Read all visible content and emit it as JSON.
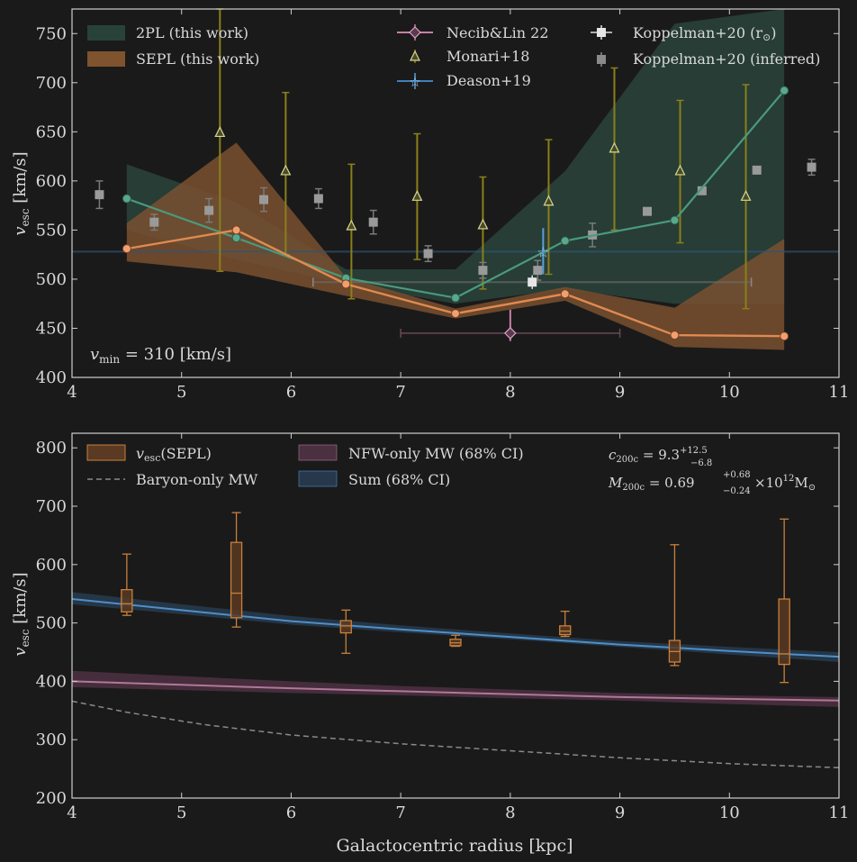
{
  "colors": {
    "background": "#1a1a1a",
    "axis": "#cfcfcf",
    "twopl": "#4a9a7e",
    "sepl": "#e08a50",
    "necib": "#c77fa6",
    "monari": "#d7d78a",
    "monari_err": "#8a7f1a",
    "deason": "#5aa0d8",
    "koppel": "#e0e0e0",
    "koppel_inf": "#9a9a9a",
    "nfw": "#b07898",
    "sum": "#4f8fc8",
    "baryon": "#8a8a8a",
    "box": "#c8803c"
  },
  "chart_data": [
    {
      "type": "line",
      "ylabel_main": "v",
      "ylabel_sub": "esc",
      "ylabel_unit": " [km/s]",
      "xlim": [
        4,
        11
      ],
      "ylim": [
        400,
        775
      ],
      "xticks": [
        "4",
        "5",
        "6",
        "7",
        "8",
        "9",
        "10",
        "11"
      ],
      "xtick_values": [
        4,
        5,
        6,
        7,
        8,
        9,
        10,
        11
      ],
      "yticks": [
        "400",
        "450",
        "500",
        "550",
        "600",
        "650",
        "700",
        "750"
      ],
      "ytick_values": [
        400,
        450,
        500,
        550,
        600,
        650,
        700,
        750
      ],
      "annotation_main": "v",
      "annotation_sub": "min",
      "annotation_rest": " = 310 [km/s]",
      "legend": {
        "twopl": "2PL (this work)",
        "sepl": "SEPL (this work)",
        "necib": "Necib&Lin 22",
        "monari": "Monari+18",
        "deason": "Deason+19",
        "koppel_main": "Koppelman+20 (r",
        "koppel_sub": "⊙",
        "koppel_close": ")",
        "koppel_inf": "Koppelman+20 (inferred)"
      },
      "series": [
        {
          "id": "twopl",
          "x": [
            4.5,
            5.5,
            6.5,
            7.5,
            8.5,
            9.5,
            10.5
          ],
          "y": [
            582,
            542,
            501,
            481,
            539,
            560,
            692
          ],
          "band_x": [
            4.5,
            5.5,
            6.5,
            7.5,
            8.5,
            9.5,
            10.5
          ],
          "band_lo": [
            550,
            520,
            495,
            475,
            490,
            475,
            475
          ],
          "band_hi": [
            617,
            578,
            510,
            510,
            610,
            760,
            775
          ]
        },
        {
          "id": "sepl",
          "x": [
            4.5,
            5.5,
            6.5,
            7.5,
            8.5,
            9.5,
            10.5
          ],
          "y": [
            531,
            550,
            495,
            465,
            485,
            443,
            442
          ],
          "band_lo": [
            518,
            507,
            483,
            460,
            478,
            431,
            428
          ],
          "band_hi": [
            557,
            639,
            502,
            470,
            492,
            471,
            541
          ]
        }
      ],
      "necib": {
        "x": 8.0,
        "y": 445,
        "xlo": 7.0,
        "xhi": 9.0,
        "ylo": 437,
        "yhi": 469
      },
      "deason": {
        "x": 8.3,
        "y": 528,
        "xlo": 6.2,
        "xhi": 10.2,
        "ylo": 505,
        "yhi": 552,
        "hline": 528
      },
      "koppel_sun": {
        "x": 8.2,
        "y": 497,
        "xlo": 6.2,
        "xhi": 10.2,
        "ylo": 490,
        "yhi": 504,
        "hline": 497
      },
      "monari": {
        "x": [
          5.35,
          5.95,
          6.55,
          7.15,
          7.75,
          8.35,
          8.95,
          9.55,
          10.15
        ],
        "y": [
          649,
          610,
          554,
          584,
          555,
          579,
          633,
          610,
          584
        ],
        "ylo": [
          508,
          525,
          480,
          520,
          490,
          505,
          550,
          537,
          470
        ],
        "yhi": [
          775,
          690,
          617,
          648,
          604,
          642,
          715,
          682,
          698
        ]
      },
      "koppel_inf": {
        "x": [
          4.25,
          4.75,
          5.25,
          5.75,
          6.25,
          6.75,
          7.25,
          7.75,
          8.25,
          8.75,
          9.25,
          9.75,
          10.25,
          10.75
        ],
        "y": [
          586,
          558,
          570,
          581,
          582,
          558,
          526,
          509,
          509,
          545,
          569,
          590,
          611,
          614
        ],
        "err": [
          14,
          8,
          12,
          12,
          10,
          12,
          8,
          8,
          10,
          12,
          0,
          0,
          0,
          8
        ]
      }
    },
    {
      "type": "line",
      "xlabel": "Galactocentric radius [kpc]",
      "ylabel_main": "v",
      "ylabel_sub": "esc",
      "ylabel_unit": " [km/s]",
      "xlim": [
        4,
        11
      ],
      "ylim": [
        200,
        825
      ],
      "xticks": [
        "4",
        "5",
        "6",
        "7",
        "8",
        "9",
        "10",
        "11"
      ],
      "xtick_values": [
        4,
        5,
        6,
        7,
        8,
        9,
        10,
        11
      ],
      "yticks": [
        "200",
        "300",
        "400",
        "500",
        "600",
        "700",
        "800"
      ],
      "ytick_values": [
        200,
        300,
        400,
        500,
        600,
        700,
        800
      ],
      "legend": {
        "sepl_main": "v",
        "sepl_sub": "esc",
        "sepl_rest": "(SEPL)",
        "baryon": "Baryon-only MW",
        "nfw": "NFW-only MW (68% CI)",
        "sum": "Sum (68% CI)"
      },
      "params": {
        "c_main": "c",
        "c_sub": "200c",
        "c_val": " = 9.3",
        "c_sup": "+12.5",
        "c_subv": "−6.8",
        "m_main": "M",
        "m_sub": "200c",
        "m_val": " = 0.69",
        "m_sup": "+0.68",
        "m_subv": "−0.24",
        "m_rest": " ×10",
        "m_exp": "12",
        "m_unit": "M",
        "m_unit_sub": "⊙"
      },
      "curves": {
        "x": [
          4,
          5,
          6,
          7,
          8,
          9,
          10,
          11
        ],
        "sum_mid": [
          541,
          522,
          503,
          489,
          476,
          463,
          452,
          442
        ],
        "sum_lo": [
          532,
          515,
          497,
          484,
          472,
          459,
          446,
          433
        ],
        "sum_hi": [
          553,
          532,
          512,
          496,
          482,
          469,
          459,
          450
        ],
        "nfw_mid": [
          400,
          394,
          388,
          383,
          378,
          373,
          370,
          367
        ],
        "nfw_lo": [
          390,
          385,
          380,
          376,
          371,
          367,
          361,
          356
        ],
        "nfw_hi": [
          418,
          409,
          400,
          392,
          386,
          380,
          376,
          373
        ],
        "baryon": [
          366,
          347,
          326,
          308,
          293,
          281,
          269,
          259,
          252
        ],
        "baryon_x": [
          4,
          4.5,
          5.2,
          6,
          7,
          8,
          9,
          10,
          11
        ]
      },
      "boxes": [
        {
          "x": 4.5,
          "wlo": 513,
          "q1": 519,
          "med": 533,
          "q3": 557,
          "whi": 618
        },
        {
          "x": 5.5,
          "wlo": 493,
          "q1": 509,
          "med": 551,
          "q3": 638,
          "whi": 689
        },
        {
          "x": 6.5,
          "wlo": 448,
          "q1": 483,
          "med": 495,
          "q3": 504,
          "whi": 522
        },
        {
          "x": 7.5,
          "wlo": 460,
          "q1": 461,
          "med": 466,
          "q3": 472,
          "whi": 479
        },
        {
          "x": 8.5,
          "wlo": 477,
          "q1": 480,
          "med": 486,
          "q3": 495,
          "whi": 520
        },
        {
          "x": 9.5,
          "wlo": 427,
          "q1": 433,
          "med": 451,
          "q3": 470,
          "whi": 634
        },
        {
          "x": 10.5,
          "wlo": 398,
          "q1": 429,
          "med": 447,
          "q3": 541,
          "whi": 678
        }
      ]
    }
  ]
}
